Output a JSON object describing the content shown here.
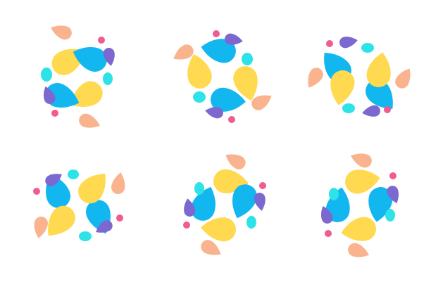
{
  "palette": {
    "yellow": "#FFD94F",
    "blue": "#12B7F0",
    "cyan": "#2DE3E8",
    "purple": "#7D68D0",
    "peach": "#F9B48F",
    "pink": "#F25A92"
  },
  "logos": [
    {
      "id": "logo-1"
    },
    {
      "id": "logo-2"
    },
    {
      "id": "logo-3"
    },
    {
      "id": "logo-4"
    },
    {
      "id": "logo-5"
    },
    {
      "id": "logo-6"
    }
  ]
}
